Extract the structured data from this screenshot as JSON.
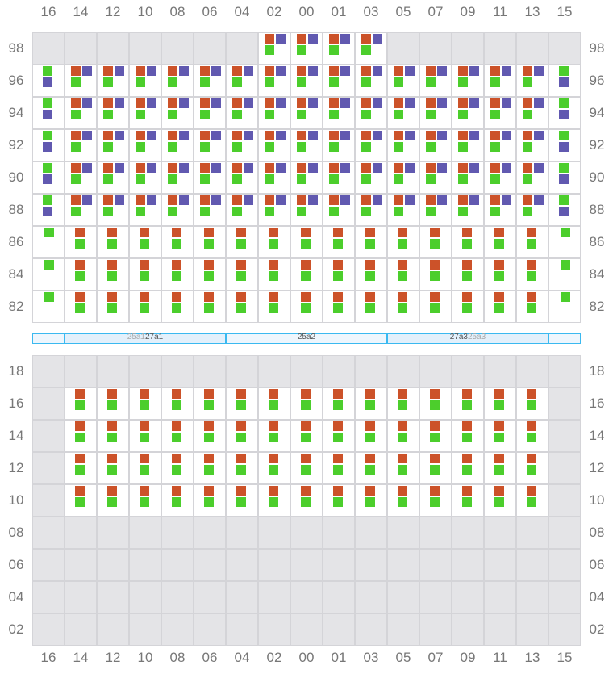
{
  "columns": [
    "16",
    "14",
    "12",
    "10",
    "08",
    "06",
    "04",
    "02",
    "00",
    "01",
    "03",
    "05",
    "07",
    "09",
    "11",
    "13",
    "15"
  ],
  "colors": {
    "orange": "#cc5229",
    "purple": "#6159b0",
    "green": "#4cce2c",
    "empty": "#e4e4e7",
    "border": "#d4d4d8",
    "bar": "#3bb9f0"
  },
  "legend_codes": {
    "E": "unavailable",
    "A": "orange+purple+green",
    "B": "green+purple",
    "C": "orange+green",
    "D": "green"
  },
  "top_section": [
    {
      "label": "98",
      "cells": "EEEEEEEAAAAEEEEEE"
    },
    {
      "label": "96",
      "cells": "BAAAAAAAAAAAAAAAB"
    },
    {
      "label": "94",
      "cells": "BAAAAAAAAAAAAAAAB"
    },
    {
      "label": "92",
      "cells": "BAAAAAAAAAAAAAAAB"
    },
    {
      "label": "90",
      "cells": "BAAAAAAAAAAAAAAAB"
    },
    {
      "label": "88",
      "cells": "BAAAAAAAAAAAAAAAB"
    },
    {
      "label": "86",
      "cells": "DCCCCCCCCCCCCCCCD"
    },
    {
      "label": "84",
      "cells": "DCCCCCCCCCCCCCCCD"
    },
    {
      "label": "82",
      "cells": "DCCCCCCCCCCCCCCCD"
    }
  ],
  "divider": [
    {
      "span": 1,
      "primary": "",
      "secondary": ""
    },
    {
      "span": 5,
      "primary": "27a1",
      "secondary": "25a1"
    },
    {
      "span": 5,
      "primary": "25a2",
      "secondary": ""
    },
    {
      "span": 5,
      "primary": "27a3",
      "secondary": "25a3"
    },
    {
      "span": 1,
      "primary": "",
      "secondary": ""
    }
  ],
  "bottom_section": [
    {
      "label": "18",
      "cells": "EEEEEEEEEEEEEEEEE"
    },
    {
      "label": "16",
      "cells": "ECCCCCCCCCCCCCCCE"
    },
    {
      "label": "14",
      "cells": "ECCCCCCCCCCCCCCCE"
    },
    {
      "label": "12",
      "cells": "ECCCCCCCCCCCCCCCE"
    },
    {
      "label": "10",
      "cells": "ECCCCCCCCCCCCCCCE"
    },
    {
      "label": "08",
      "cells": "EEEEEEEEEEEEEEEEE"
    },
    {
      "label": "06",
      "cells": "EEEEEEEEEEEEEEEEE"
    },
    {
      "label": "04",
      "cells": "EEEEEEEEEEEEEEEEE"
    },
    {
      "label": "02",
      "cells": "EEEEEEEEEEEEEEEEE"
    }
  ]
}
